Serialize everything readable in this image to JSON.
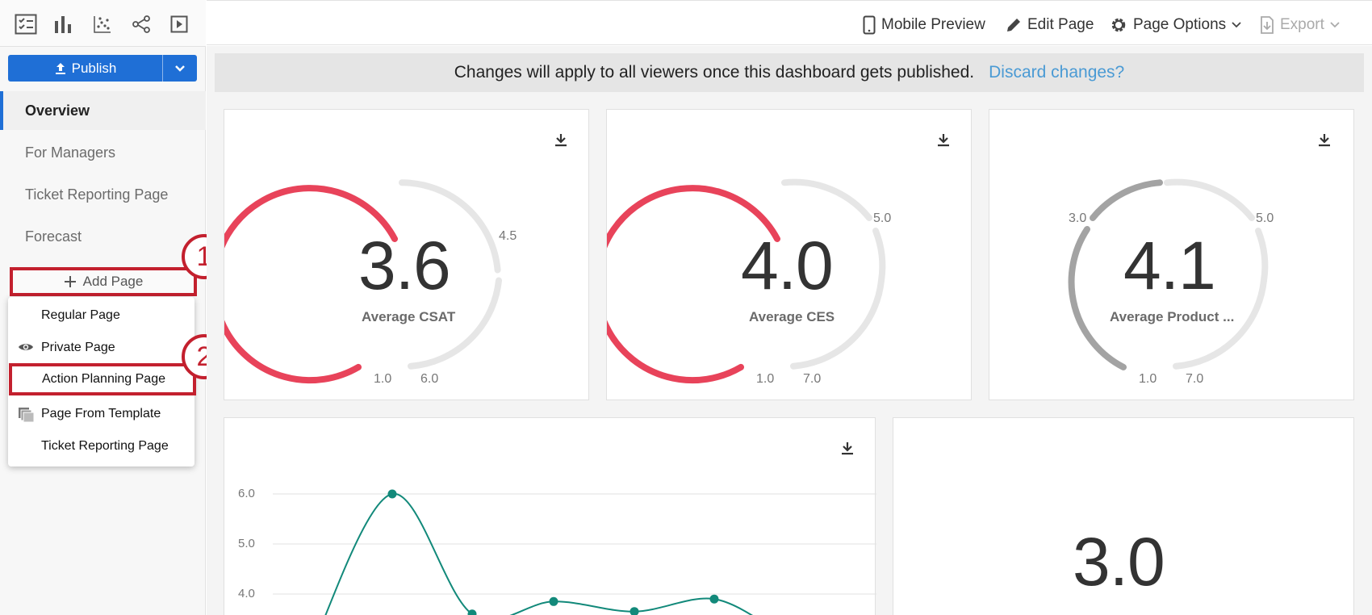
{
  "sidebar": {
    "publish_label": "Publish",
    "pages": [
      {
        "label": "Overview",
        "active": true
      },
      {
        "label": "For Managers"
      },
      {
        "label": "Ticket Reporting Page"
      },
      {
        "label": "Forecast"
      }
    ],
    "add_page_label": "Add Page",
    "add_page_menu": [
      {
        "label": "Regular Page",
        "icon": "none"
      },
      {
        "label": "Private Page",
        "icon": "eye-icon"
      },
      {
        "label": "Action Planning Page",
        "icon": "none"
      },
      {
        "label": "Page From Template",
        "icon": "copy-pages-icon"
      },
      {
        "label": "Ticket Reporting Page",
        "icon": "none"
      }
    ],
    "callouts": [
      "1",
      "2"
    ]
  },
  "header": {
    "mobile_preview": "Mobile Preview",
    "edit_page": "Edit Page",
    "page_options": "Page Options",
    "export": "Export"
  },
  "banner": {
    "message": "Changes will apply to all viewers once this dashboard gets published.",
    "discard": "Discard changes?"
  },
  "widgets": {
    "gauges": [
      {
        "value": "3.6",
        "label": "Average CSAT",
        "min": "1.0",
        "max": "6.0",
        "mark": "4.5",
        "color": "#e8435a"
      },
      {
        "value": "4.0",
        "label": "Average CES",
        "min": "1.0",
        "max": "7.0",
        "mark": "5.0",
        "color": "#e8435a"
      },
      {
        "value": "4.1",
        "label": "Average Product ...",
        "min": "1.0",
        "max": "7.0",
        "mark_low": "3.0",
        "mark": "5.0",
        "color": "#a3a3a3"
      }
    ],
    "line_chart": {
      "yticks": [
        "6.0",
        "5.0",
        "4.0"
      ]
    },
    "number_widget": {
      "value": "3.0"
    }
  },
  "colors": {
    "accent": "#1f6fd6",
    "callout": "#c3202e",
    "line": "#12897a",
    "gauge_track": "#e6e6e6"
  },
  "chart_data": {
    "type": "line",
    "title": "",
    "xlabel": "",
    "ylabel": "",
    "ylim": [
      3.5,
      6.3
    ],
    "yticks": [
      4.0,
      5.0,
      6.0
    ],
    "x": [
      1,
      2,
      3,
      4,
      5
    ],
    "series": [
      {
        "values": [
          6.0,
          3.6,
          3.85,
          3.65,
          3.9
        ]
      }
    ],
    "grid": true
  }
}
